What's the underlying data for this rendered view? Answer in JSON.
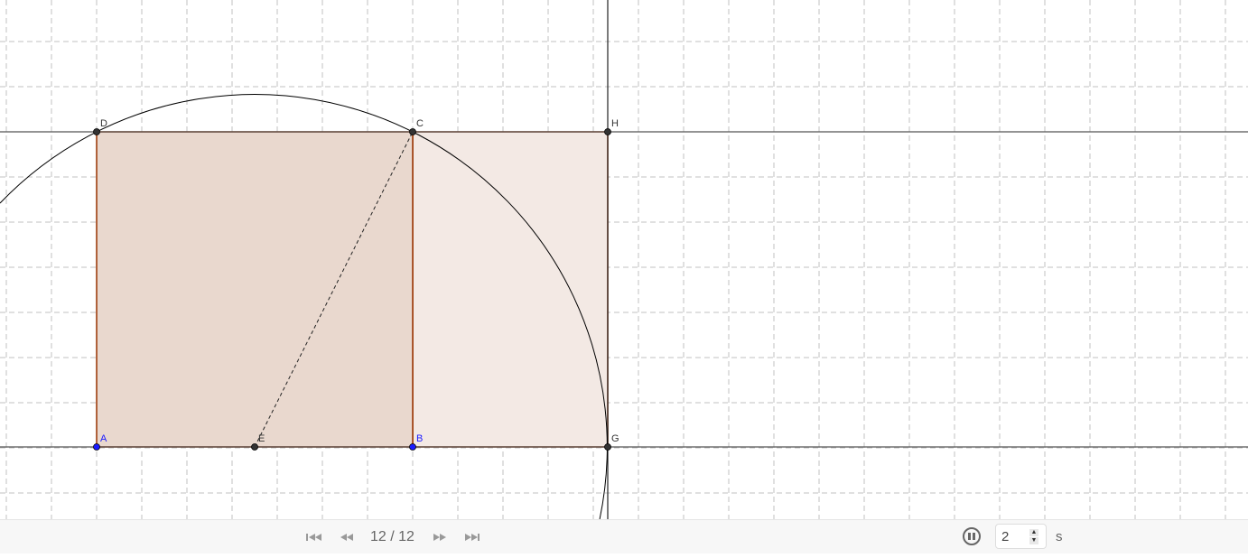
{
  "construction": {
    "points": [
      {
        "label": "A",
        "color": "#1a1aff"
      },
      {
        "label": "B",
        "color": "#1a1aff"
      },
      {
        "label": "C",
        "color": "#333333"
      },
      {
        "label": "D",
        "color": "#333333"
      },
      {
        "label": "E",
        "color": "#333333"
      },
      {
        "label": "G",
        "color": "#333333"
      },
      {
        "label": "H",
        "color": "#333333"
      }
    ],
    "colors": {
      "polygon_stroke": "#993300",
      "square_fill": "#e9d8ce",
      "rect_fill": "#f3e9e4",
      "grid": "#c0c0c0",
      "line": "#555555",
      "circle": "#000000"
    }
  },
  "toolbar": {
    "first_icon": "skip-to-start-icon",
    "prev_icon": "step-back-icon",
    "frame": "12 / 12",
    "next_icon": "step-forward-icon",
    "last_icon": "skip-to-end-icon",
    "pause_icon": "pause-icon",
    "speed": "2",
    "unit": "s"
  }
}
